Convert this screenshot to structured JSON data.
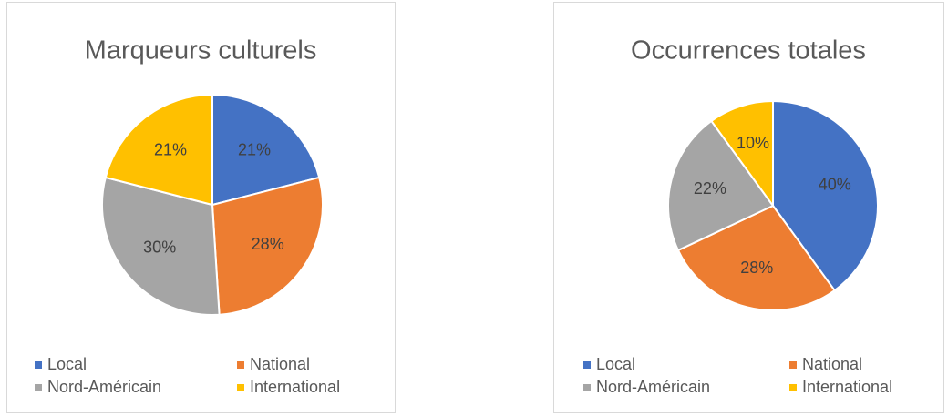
{
  "chart_data": [
    {
      "type": "pie",
      "title": "Marqueurs culturels",
      "categories": [
        "Local",
        "National",
        "Nord-Américain",
        "International"
      ],
      "values": [
        21,
        28,
        30,
        21
      ],
      "value_labels": [
        "21%",
        "28%",
        "30%",
        "21%"
      ],
      "colors": [
        "#4472c4",
        "#ed7d31",
        "#a5a5a5",
        "#ffc000"
      ]
    },
    {
      "type": "pie",
      "title": "Occurrences totales",
      "categories": [
        "Local",
        "National",
        "Nord-Américain",
        "International"
      ],
      "values": [
        40,
        28,
        22,
        10
      ],
      "value_labels": [
        "40%",
        "28%",
        "22%",
        "10%"
      ],
      "colors": [
        "#4472c4",
        "#ed7d31",
        "#a5a5a5",
        "#ffc000"
      ]
    }
  ]
}
